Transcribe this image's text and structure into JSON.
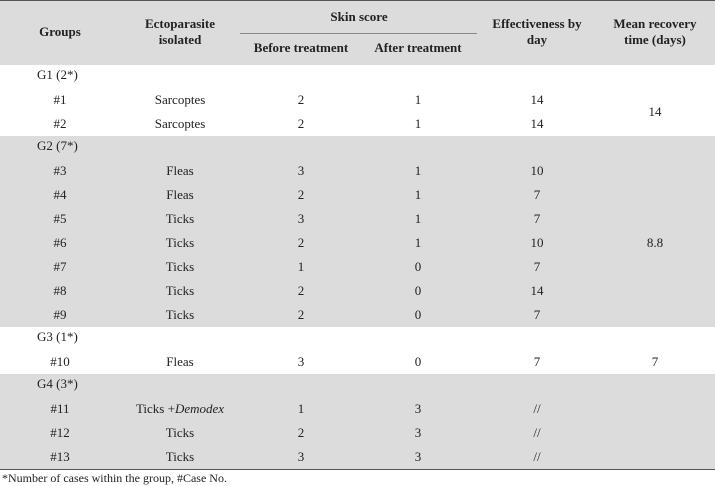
{
  "header": {
    "groups": "Groups",
    "ectoparasite": "Ectoparasite isolated",
    "skin_score": "Skin score",
    "before": "Before treatment",
    "after": "After treatment",
    "effectiveness": "Effectiveness by day",
    "recovery": "Mean recovery time (days)"
  },
  "groups": [
    {
      "label": "G1 (2*)",
      "mean_recovery": 14,
      "cases": [
        {
          "case": "#1",
          "ectoparasite": "Sarcoptes",
          "before": 2,
          "after": 1,
          "effectiveness": 14
        },
        {
          "case": "#2",
          "ectoparasite": "Sarcoptes",
          "before": 2,
          "after": 1,
          "effectiveness": 14
        }
      ]
    },
    {
      "label": "G2 (7*)",
      "mean_recovery": 8.8,
      "cases": [
        {
          "case": "#3",
          "ectoparasite": "Fleas",
          "before": 3,
          "after": 1,
          "effectiveness": 10
        },
        {
          "case": "#4",
          "ectoparasite": "Fleas",
          "before": 2,
          "after": 1,
          "effectiveness": 7
        },
        {
          "case": "#5",
          "ectoparasite": "Ticks",
          "before": 3,
          "after": 1,
          "effectiveness": 7
        },
        {
          "case": "#6",
          "ectoparasite": "Ticks",
          "before": 2,
          "after": 1,
          "effectiveness": 10
        },
        {
          "case": "#7",
          "ectoparasite": "Ticks",
          "before": 1,
          "after": 0,
          "effectiveness": 7
        },
        {
          "case": "#8",
          "ectoparasite": "Ticks",
          "before": 2,
          "after": 0,
          "effectiveness": 14
        },
        {
          "case": "#9",
          "ectoparasite": "Ticks",
          "before": 2,
          "after": 0,
          "effectiveness": 7
        }
      ]
    },
    {
      "label": "G3 (1*)",
      "mean_recovery": 7,
      "cases": [
        {
          "case": "#10",
          "ectoparasite": "Fleas",
          "before": 3,
          "after": 0,
          "effectiveness": 7
        }
      ]
    },
    {
      "label": "G4 (3*)",
      "cases": [
        {
          "case": "#11",
          "ectoparasite": [
            "Ticks +",
            "Demodex"
          ],
          "before": 1,
          "after": 3,
          "effectiveness": "//"
        },
        {
          "case": "#12",
          "ectoparasite": "Ticks",
          "before": 2,
          "after": 3,
          "effectiveness": "//"
        },
        {
          "case": "#13",
          "ectoparasite": "Ticks",
          "before": 3,
          "after": 3,
          "effectiveness": "//"
        }
      ]
    }
  ],
  "footnote": "*Number of cases within the group, #Case No."
}
